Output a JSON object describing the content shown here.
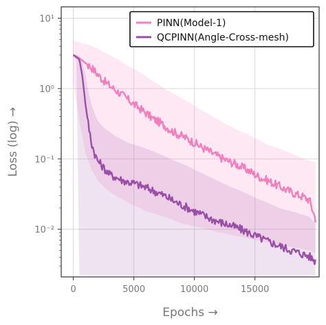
{
  "chart_data": {
    "type": "line",
    "title": "",
    "xlabel": "Epochs →",
    "ylabel": "Loss (log) →",
    "yscale": "log",
    "xlim": [
      -1000,
      20300
    ],
    "ylim": [
      0.0021,
      14.5
    ],
    "grid": true,
    "legend_position": "top-right",
    "x_ticks": [
      0,
      5000,
      10000,
      15000
    ],
    "x_tick_labels": [
      "0",
      "5000",
      "10000",
      "15000"
    ],
    "y_ticks": [
      0.01,
      0.1,
      1,
      10
    ],
    "y_tick_labels": [
      "10⁻²",
      "10⁻¹",
      "10⁰",
      "10¹"
    ],
    "shaded_band": "min–max range around each series",
    "series": [
      {
        "name": "PINN(Model-1)",
        "color": "#f27fbc",
        "x": [
          0,
          500,
          1000,
          1500,
          2000,
          2500,
          3000,
          3500,
          4000,
          4500,
          5000,
          5500,
          6000,
          6500,
          7000,
          7500,
          8000,
          8500,
          9000,
          9500,
          10000,
          10500,
          11000,
          11500,
          12000,
          12500,
          13000,
          13500,
          14000,
          14500,
          15000,
          15500,
          16000,
          16500,
          17000,
          17500,
          18000,
          18500,
          19000,
          19500,
          20000
        ],
        "values": [
          3.0,
          2.7,
          2.3,
          2.0,
          1.6,
          1.3,
          1.1,
          0.95,
          0.82,
          0.7,
          0.6,
          0.52,
          0.45,
          0.38,
          0.34,
          0.3,
          0.26,
          0.23,
          0.21,
          0.19,
          0.17,
          0.15,
          0.135,
          0.12,
          0.108,
          0.098,
          0.09,
          0.083,
          0.075,
          0.068,
          0.06,
          0.054,
          0.05,
          0.045,
          0.041,
          0.037,
          0.034,
          0.031,
          0.029,
          0.026,
          0.014
        ],
        "band_low": [
          1.2,
          0.35,
          0.12,
          0.07,
          0.05,
          0.04,
          0.034,
          0.03,
          0.027,
          0.024,
          0.022,
          0.02,
          0.018,
          0.017,
          0.016,
          0.015,
          0.014,
          0.013,
          0.012,
          0.0115,
          0.011,
          0.0105,
          0.01,
          0.0095,
          0.009,
          0.0087,
          0.0083,
          0.008,
          0.0077,
          0.0074,
          0.007,
          0.0068,
          0.0065,
          0.0063,
          0.006,
          0.0058,
          0.0056,
          0.0054,
          0.0052,
          0.005,
          0.0045
        ],
        "band_high": [
          4.8,
          4.5,
          4.3,
          4.0,
          3.7,
          3.3,
          3.0,
          2.7,
          2.4,
          2.1,
          1.9,
          1.7,
          1.5,
          1.3,
          1.15,
          1.0,
          0.9,
          0.8,
          0.72,
          0.64,
          0.57,
          0.5,
          0.45,
          0.4,
          0.36,
          0.32,
          0.29,
          0.26,
          0.24,
          0.22,
          0.2,
          0.18,
          0.16,
          0.15,
          0.14,
          0.13,
          0.12,
          0.11,
          0.1,
          0.095,
          0.09
        ]
      },
      {
        "name": "QCPINN(Angle-Cross-mesh)",
        "color": "#9b4ea8",
        "x": [
          0,
          250,
          500,
          750,
          1000,
          1250,
          1500,
          1750,
          2000,
          2500,
          3000,
          3500,
          4000,
          4500,
          5000,
          5500,
          6000,
          6500,
          7000,
          7500,
          8000,
          8500,
          9000,
          9500,
          10000,
          10500,
          11000,
          11500,
          12000,
          12500,
          13000,
          13500,
          14000,
          14500,
          15000,
          15500,
          16000,
          16500,
          17000,
          17500,
          18000,
          18500,
          19000,
          19500,
          20000
        ],
        "values": [
          3.0,
          2.8,
          2.6,
          1.5,
          0.6,
          0.3,
          0.17,
          0.12,
          0.095,
          0.075,
          0.06,
          0.055,
          0.05,
          0.047,
          0.045,
          0.042,
          0.039,
          0.036,
          0.033,
          0.03,
          0.027,
          0.024,
          0.022,
          0.02,
          0.018,
          0.0165,
          0.015,
          0.0138,
          0.0128,
          0.012,
          0.0113,
          0.0105,
          0.0097,
          0.0089,
          0.0081,
          0.0074,
          0.0068,
          0.0063,
          0.0058,
          0.0054,
          0.005,
          0.0047,
          0.0044,
          0.0041,
          0.0035
        ],
        "band_low": [
          2.9,
          2.5,
          0.0022,
          0.0022,
          0.0022,
          0.0022,
          0.0022,
          0.0022,
          0.0022,
          0.0022,
          0.0022,
          0.0022,
          0.0022,
          0.0022,
          0.0022,
          0.0022,
          0.0022,
          0.0022,
          0.0022,
          0.0022,
          0.0022,
          0.0022,
          0.0022,
          0.0022,
          0.0022,
          0.0022,
          0.0022,
          0.0022,
          0.0022,
          0.0022,
          0.0022,
          0.0022,
          0.0022,
          0.0022,
          0.0022,
          0.0022,
          0.0022,
          0.0022,
          0.0022,
          0.0022,
          0.0022,
          0.0022,
          0.0022,
          0.0022,
          0.0022
        ],
        "band_high": [
          3.1,
          3.0,
          2.9,
          2.4,
          1.6,
          0.9,
          0.6,
          0.45,
          0.35,
          0.28,
          0.24,
          0.21,
          0.19,
          0.17,
          0.16,
          0.15,
          0.14,
          0.13,
          0.12,
          0.11,
          0.1,
          0.092,
          0.085,
          0.078,
          0.07,
          0.064,
          0.058,
          0.053,
          0.048,
          0.044,
          0.04,
          0.037,
          0.034,
          0.031,
          0.028,
          0.026,
          0.024,
          0.022,
          0.02,
          0.019,
          0.018,
          0.017,
          0.016,
          0.015,
          0.012
        ]
      }
    ]
  }
}
